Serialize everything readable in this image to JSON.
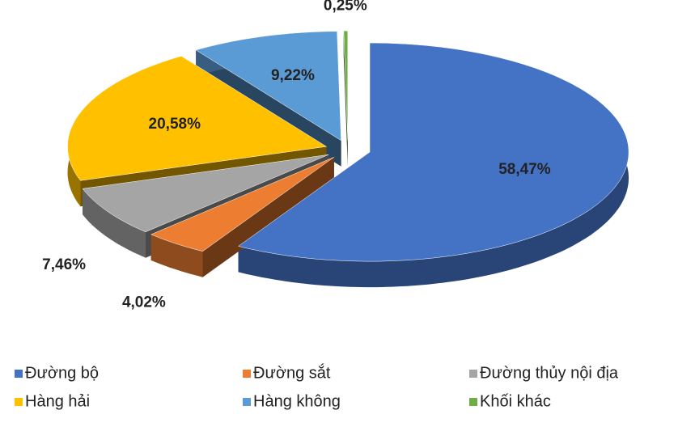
{
  "chart_data": {
    "type": "pie",
    "categories": [
      "Đường bộ",
      "Đường sắt",
      "Đường thủy nội địa",
      "Hàng hải",
      "Hàng không",
      "Khối khác"
    ],
    "values": [
      58.47,
      4.02,
      7.46,
      20.58,
      9.22,
      0.25
    ],
    "value_labels": [
      "58,47%",
      "4,02%",
      "7,46%",
      "20,58%",
      "9,22%",
      "0,25%"
    ],
    "colors": [
      "#4472c4",
      "#ed7d31",
      "#a5a5a5",
      "#ffc000",
      "#5b9bd5",
      "#70ad47"
    ],
    "legend": "bottom"
  }
}
